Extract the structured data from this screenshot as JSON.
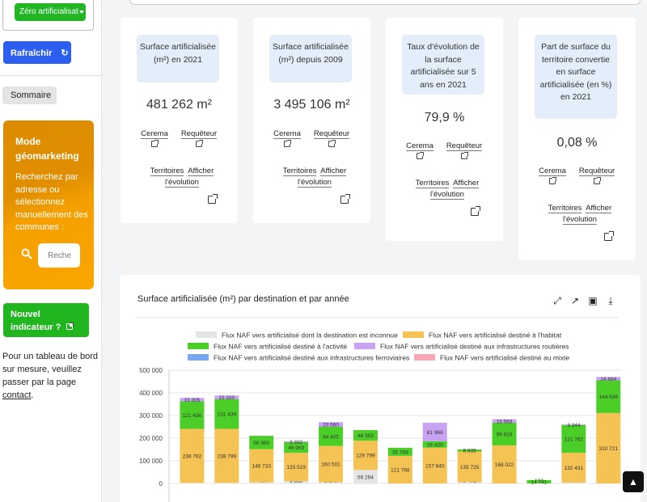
{
  "sidebar": {
    "select_value": "Zéro artificialisat",
    "refresh_label": "Rafraîchir",
    "sommaire_label": "Sommaire",
    "geo_title": "Mode géomarketing",
    "geo_desc": "Recherchez par adresse ou sélectionnez manuellement des communes :",
    "geo_search_placeholder": "Reche",
    "new_indicator_label": "Nouvel indicateur ?",
    "tableau_text": "Pour un tableau de bord sur mesure, veuillez passer par la page",
    "tableau_link": "contact",
    "tableau_end": "."
  },
  "cards": [
    {
      "label": "Surface artificialisée (m²) en 2021",
      "value": "481 262 m²",
      "link1": "Cerema",
      "link2": "Requêteur",
      "link3": "Territoires",
      "link4": "Afficher l'évolution"
    },
    {
      "label": "Surface artificialisée (m²) depuis 2009",
      "value": "3 495 106 m²",
      "link1": "Cerema",
      "link2": "Requêteur",
      "link3": "Territoires",
      "link4": "Afficher l'évolution"
    },
    {
      "label": "Taux d'évolution de la surface artificialisée sur 5 ans en 2021",
      "value": "79,9 %",
      "link1": "Cerema",
      "link2": "Requêteur",
      "link3": "Territoires",
      "link4": "Afficher l'évolution"
    },
    {
      "label": "Part de surface du territoire convertie en surface artificialisée (en %) en 2021",
      "value": "0,08 %",
      "link1": "Cerema",
      "link2": "Requêteur",
      "link3": "Territoires",
      "link4": "Afficher l'évolution"
    }
  ],
  "chart_card": {
    "title": "Surface artificialisée (m²) par destination et par année",
    "tools": [
      "expand-icon",
      "external-link-icon",
      "image-icon",
      "download-icon"
    ]
  },
  "chart_data": {
    "type": "bar",
    "stacked": true,
    "ylim": [
      0,
      500000
    ],
    "yticks": [
      "0",
      "100 000",
      "200 000",
      "300 000",
      "400 000",
      "500 000"
    ],
    "grid": true,
    "legend_position": "top",
    "series": [
      {
        "name": "Flux NAF vers artificialisé dont la destination est inconnue",
        "color": "#e5e5e5",
        "values": [
          2468,
          2453,
          4614,
          9836,
          5146,
          59294,
          1,
          0,
          5402,
          0,
          102,
          3219,
          224
        ],
        "labels": [
          "2 468",
          "2 453",
          "4 614",
          "9 836",
          "5 146",
          "59 294",
          "1",
          "",
          "5 402",
          "",
          "102",
          "3 219",
          "224"
        ]
      },
      {
        "name": "Flux NAF vers artificialisé destiné à l'habitat",
        "color": "#f5c254",
        "values": [
          238782,
          238799,
          146733,
          125519,
          160501,
          129799,
          121768,
          157840,
          135725,
          168022,
          0,
          132431,
          310721
        ],
        "labels": [
          "238 782",
          "238 799",
          "146 733",
          "125 519",
          "160 501",
          "129 799",
          "121 768",
          "157 840",
          "135 725",
          "168 022",
          "",
          "132 431",
          "310 721"
        ]
      },
      {
        "name": "Flux NAF vers artificialisé destiné à l'activité",
        "color": "#4bcf28",
        "values": [
          121436,
          131439,
          58960,
          46969,
          84405,
          46353,
          35768,
          28420,
          8835,
          99916,
          14741,
          121762,
          144636
        ],
        "labels": [
          "121 436",
          "131 439",
          "58 960",
          "46 969",
          "84 405",
          "46 353",
          "35 768",
          "28 420",
          "8 835",
          "99 916",
          "14 741",
          "121 762",
          "144 636"
        ]
      },
      {
        "name": "Flux NAF vers artificialisé destiné aux infrastructures routières",
        "color": "#c7a3f2",
        "values": [
          15305,
          15320,
          0,
          3332,
          20560,
          0,
          0,
          81968,
          0,
          15563,
          0,
          3344,
          14684
        ],
        "labels": [
          "15 305",
          "15 320",
          "",
          "3 332",
          "20 560",
          "",
          "",
          "81 968",
          "",
          "15 563",
          "",
          "3 344",
          "14 684"
        ]
      },
      {
        "name": "Flux NAF vers artificialisé destiné aux infrastructures ferroviaires",
        "color": "#7aa7ee",
        "values": [
          0,
          0,
          0,
          0,
          0,
          0,
          0,
          0,
          0,
          0,
          0,
          0,
          0
        ],
        "labels": []
      },
      {
        "name": "Flux NAF vers artificialisé destiné au mixte",
        "color": "#f4a7b4",
        "values": [
          0,
          0,
          0,
          0,
          0,
          0,
          0,
          0,
          0,
          0,
          0,
          0,
          0
        ],
        "labels": []
      }
    ]
  }
}
